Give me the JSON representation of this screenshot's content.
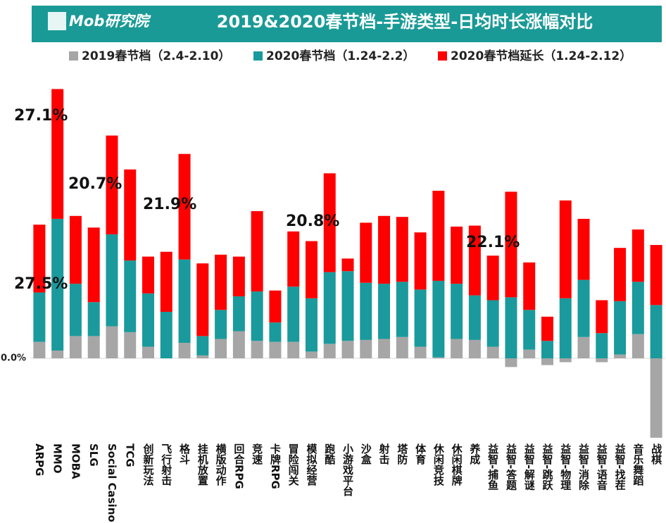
{
  "header": {
    "logo": "Mob研究院"
  },
  "chart_data": {
    "type": "stacked_bar",
    "title": "2019&2020春节档-手游类型-日均时长涨幅对比",
    "categories": [
      "ARPG",
      "MMO",
      "MOBA",
      "SLG",
      "Social Casino",
      "TCG",
      "创新玩法",
      "飞行射击",
      "格斗",
      "挂机放置",
      "横版动作",
      "回合RPG",
      "竞速",
      "卡牌RPG",
      "冒险闯关",
      "模拟经营",
      "跑酷",
      "小游戏平台",
      "沙盒",
      "射击",
      "塔防",
      "体育",
      "休闲竞技",
      "休闲棋牌",
      "养成",
      "益智-捕鱼",
      "益智-答题",
      "益智-解谜",
      "益智-跳跃",
      "益智-物理",
      "益智-消除",
      "益智-语音",
      "益智-找茬",
      "音乐舞蹈",
      "战棋"
    ],
    "series": [
      {
        "name": "2019春节档（2.4-2.10）",
        "color": "#a6a6a6",
        "values": [
          1.7,
          0.8,
          2.3,
          2.3,
          3.3,
          2.7,
          1.2,
          0,
          1.6,
          0.3,
          2.0,
          2.8,
          1.8,
          1.7,
          1.7,
          0.7,
          1.5,
          1.8,
          1.9,
          2.0,
          2.2,
          1.2,
          0.1,
          2.0,
          1.9,
          1.2,
          -0.9,
          0.9,
          -0.7,
          -0.4,
          2.2,
          -0.4,
          0.4,
          2.5,
          -8.2
        ]
      },
      {
        "name": "2020春节档（1.24-2.2）",
        "color": "#1a9a9c",
        "values": [
          5.1,
          13.6,
          5.4,
          3.5,
          9.5,
          7.4,
          5.5,
          4.8,
          8.6,
          2.0,
          3.0,
          3.6,
          5.1,
          2.0,
          5.7,
          5.5,
          7.4,
          7.2,
          5.9,
          5.7,
          5.7,
          5.9,
          7.9,
          5.7,
          4.6,
          4.8,
          6.3,
          4.1,
          1.8,
          6.2,
          5.9,
          2.6,
          5.5,
          5.4,
          5.5
        ]
      },
      {
        "name": "2020春节档延长（1.24-2.12）",
        "color": "#ff0000",
        "values": [
          7.0,
          13.4,
          7.0,
          7.7,
          10.2,
          9.4,
          3.8,
          6.2,
          10.9,
          7.5,
          5.7,
          4.1,
          8.3,
          3.3,
          5.7,
          5.9,
          10.2,
          1.3,
          6.2,
          7.0,
          6.7,
          5.9,
          9.3,
          5.9,
          7.2,
          4.6,
          10.9,
          4.9,
          2.5,
          10.1,
          6.3,
          3.4,
          5.5,
          5.4,
          6.2
        ]
      }
    ],
    "ylim": [
      -8.5,
      29
    ],
    "yticks": [
      {
        "value": 0,
        "label": "0.0%"
      }
    ],
    "annotations": [
      "27.1%",
      "20.7%",
      "21.9%",
      "20.8%",
      "22.1%",
      "27.5%"
    ]
  }
}
